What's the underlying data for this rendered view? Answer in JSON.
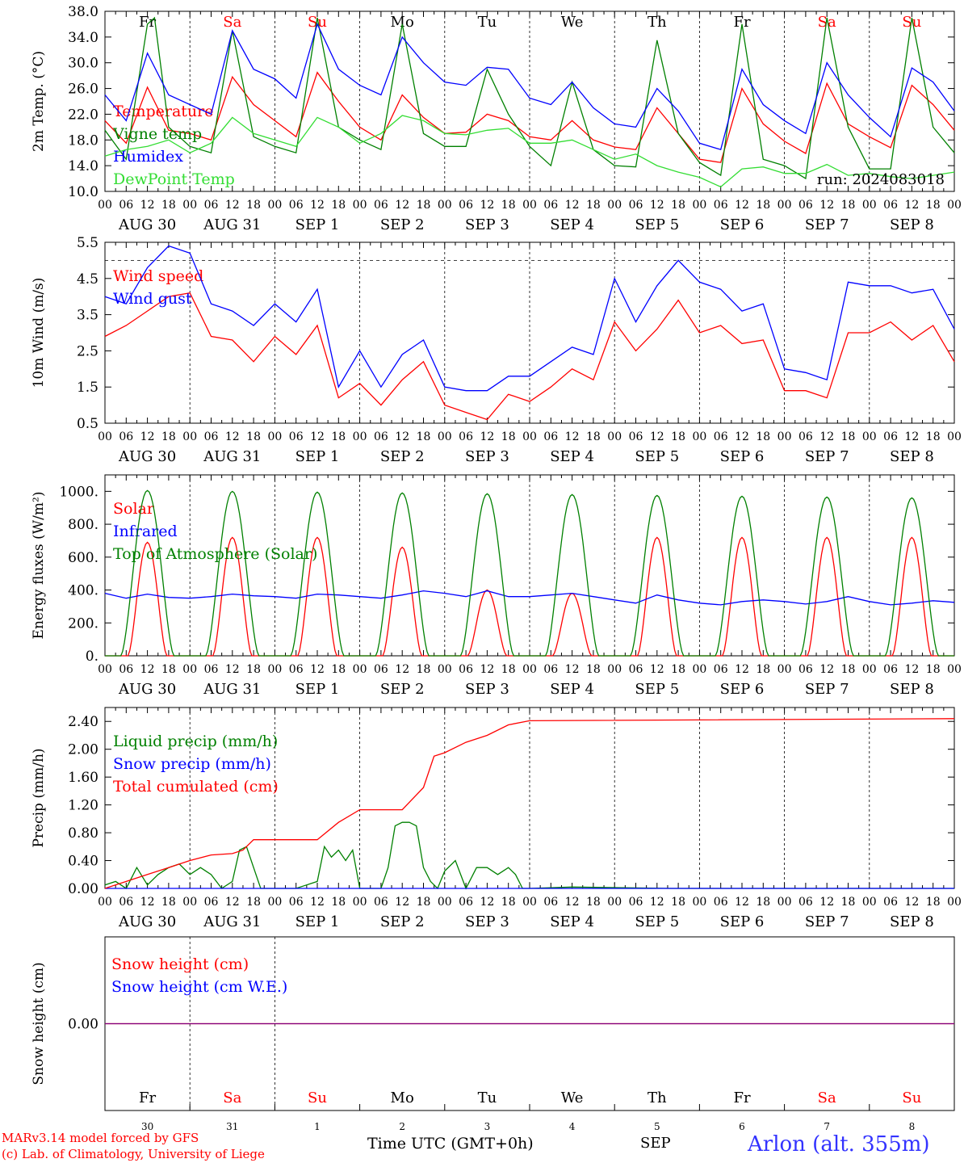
{
  "days": [
    {
      "weekday": "Fr",
      "date": "AUG 30",
      "dnum": "30",
      "weekend": false
    },
    {
      "weekday": "Sa",
      "date": "AUG 31",
      "dnum": "31",
      "weekend": true
    },
    {
      "weekday": "Su",
      "date": "SEP  1",
      "dnum": "1",
      "weekend": true
    },
    {
      "weekday": "Mo",
      "date": "SEP  2",
      "dnum": "2",
      "weekend": false
    },
    {
      "weekday": "Tu",
      "date": "SEP  3",
      "dnum": "3",
      "weekend": false
    },
    {
      "weekday": "We",
      "date": "SEP  4",
      "dnum": "4",
      "weekend": false
    },
    {
      "weekday": "Th",
      "date": "SEP  5",
      "dnum": "5",
      "weekend": false
    },
    {
      "weekday": "Fr",
      "date": "SEP  6",
      "dnum": "6",
      "weekend": false
    },
    {
      "weekday": "Sa",
      "date": "SEP  7",
      "dnum": "7",
      "weekend": true
    },
    {
      "weekday": "Su",
      "date": "SEP  8",
      "dnum": "8",
      "weekend": true
    }
  ],
  "hour_ticks": [
    "00",
    "06",
    "12",
    "18"
  ],
  "hour_end": "00",
  "colors": {
    "red": "#ff0000",
    "green": "#008000",
    "blue": "#0000ff",
    "lightgreen": "#33dd33",
    "purple": "#800080"
  },
  "chart_data": [
    {
      "type": "line",
      "ylabel": "2m Temp. (°C)",
      "ylim": [
        10,
        38
      ],
      "yticks": [
        "10.0",
        "14.0",
        "18.0",
        "22.0",
        "26.0",
        "30.0",
        "34.0",
        "38.0"
      ],
      "show_weekdays": true,
      "run_label": "run: 2024083018",
      "series": [
        {
          "name": "Temperature",
          "color": "red",
          "x": [
            0,
            6,
            12,
            18,
            24,
            30,
            36,
            42,
            48,
            54,
            60,
            66,
            72,
            78,
            84,
            90,
            96,
            102,
            108,
            114,
            120,
            126,
            132,
            138,
            144,
            150,
            156,
            162,
            168,
            174,
            180,
            186,
            192,
            198,
            204,
            210,
            216,
            222,
            228,
            234,
            240
          ],
          "y": [
            21,
            17.5,
            26.2,
            19.5,
            19,
            18,
            27.8,
            23.5,
            21,
            18.5,
            28.5,
            24,
            20,
            18,
            25,
            21.5,
            19,
            19.2,
            22,
            21,
            18.5,
            18,
            21,
            18,
            16.9,
            16.5,
            23,
            19,
            15,
            14.5,
            26,
            20.5,
            17.8,
            15.9,
            26.8,
            20.5,
            18.5,
            16.8,
            26.5,
            23.5,
            19.5
          ]
        },
        {
          "name": "Vigne temp",
          "color": "green",
          "x": [
            0,
            6,
            12,
            14,
            18,
            24,
            30,
            36,
            42,
            48,
            54,
            60,
            66,
            72,
            78,
            84,
            90,
            96,
            102,
            108,
            114,
            120,
            126,
            132,
            138,
            144,
            150,
            156,
            162,
            168,
            174,
            180,
            186,
            192,
            198,
            204,
            210,
            216,
            222,
            228,
            234,
            240
          ],
          "y": [
            19.5,
            15,
            36,
            37,
            20,
            17,
            16,
            35,
            18.5,
            17,
            16,
            37,
            20,
            18,
            16.5,
            36,
            19,
            17,
            17,
            29,
            22,
            17,
            14,
            27,
            16.5,
            14,
            13.8,
            33.5,
            19,
            14.5,
            12.5,
            36,
            15,
            14,
            12,
            37,
            20,
            13.5,
            13.5,
            37,
            20,
            16
          ]
        },
        {
          "name": "Humidex",
          "color": "blue",
          "x": [
            0,
            6,
            12,
            18,
            24,
            30,
            36,
            42,
            48,
            54,
            60,
            66,
            72,
            78,
            84,
            90,
            96,
            102,
            108,
            114,
            120,
            126,
            132,
            138,
            144,
            150,
            156,
            162,
            168,
            174,
            180,
            186,
            192,
            198,
            204,
            210,
            216,
            222,
            228,
            234,
            240
          ],
          "y": [
            25,
            21,
            31.5,
            25,
            23.5,
            22,
            35,
            29,
            27.5,
            24.5,
            36,
            29,
            26.5,
            25,
            34,
            30,
            27,
            26.5,
            29.3,
            29,
            24.5,
            23.5,
            27,
            23,
            20.5,
            20,
            26,
            22.5,
            17.5,
            16.5,
            29,
            23.5,
            21,
            19,
            30,
            25,
            21.5,
            18.5,
            29.2,
            27,
            22.5
          ]
        },
        {
          "name": "DewPoint Temp",
          "color": "lightgreen",
          "x": [
            0,
            6,
            12,
            18,
            24,
            30,
            36,
            42,
            48,
            54,
            60,
            66,
            72,
            78,
            84,
            90,
            96,
            102,
            108,
            114,
            120,
            126,
            132,
            138,
            144,
            150,
            156,
            162,
            168,
            174,
            180,
            186,
            192,
            198,
            204,
            210,
            216,
            222,
            228,
            234,
            240
          ],
          "y": [
            15.5,
            16.5,
            17,
            18,
            16,
            17.5,
            21.5,
            19,
            18,
            17,
            21.5,
            20,
            17.5,
            19,
            21.8,
            21,
            19,
            18.8,
            19.5,
            19.8,
            17.5,
            17.5,
            18,
            16.5,
            15,
            15.8,
            14,
            13,
            12.2,
            10.7,
            13.5,
            13.8,
            12.8,
            12.8,
            14.2,
            12.5,
            12.8,
            12.3,
            12,
            12.5,
            13
          ]
        }
      ]
    },
    {
      "type": "line",
      "ylabel": "10m Wind (m/s)",
      "ylim": [
        0.5,
        5.5
      ],
      "yticks": [
        "0.5",
        "1.5",
        "2.5",
        "3.5",
        "4.5",
        "5.5"
      ],
      "refline": 5.0,
      "series": [
        {
          "name": "Wind speed",
          "color": "red",
          "x": [
            0,
            6,
            12,
            18,
            24,
            30,
            36,
            42,
            48,
            54,
            60,
            66,
            72,
            78,
            84,
            90,
            96,
            102,
            108,
            114,
            120,
            126,
            132,
            138,
            144,
            150,
            156,
            162,
            168,
            174,
            180,
            186,
            192,
            198,
            204,
            210,
            216,
            222,
            228,
            234,
            240
          ],
          "y": [
            2.9,
            3.2,
            3.6,
            4.0,
            4.1,
            2.9,
            2.8,
            2.2,
            2.9,
            2.4,
            3.2,
            1.2,
            1.6,
            1.0,
            1.7,
            2.2,
            1.0,
            0.8,
            0.6,
            1.3,
            1.1,
            1.5,
            2.0,
            1.7,
            3.3,
            2.5,
            3.1,
            3.9,
            3.0,
            3.2,
            2.7,
            2.8,
            1.4,
            1.4,
            1.2,
            3.0,
            3.0,
            3.3,
            2.8,
            3.2,
            2.2
          ]
        },
        {
          "name": "Wind gust",
          "color": "blue",
          "x": [
            0,
            6,
            12,
            18,
            24,
            30,
            36,
            42,
            48,
            54,
            60,
            66,
            72,
            78,
            84,
            90,
            96,
            102,
            108,
            114,
            120,
            126,
            132,
            138,
            144,
            150,
            156,
            162,
            168,
            174,
            180,
            186,
            192,
            198,
            204,
            210,
            216,
            222,
            228,
            234,
            240
          ],
          "y": [
            4.0,
            3.8,
            4.8,
            5.4,
            5.2,
            3.8,
            3.6,
            3.2,
            3.8,
            3.3,
            4.2,
            1.5,
            2.5,
            1.5,
            2.4,
            2.8,
            1.5,
            1.4,
            1.4,
            1.8,
            1.8,
            2.2,
            2.6,
            2.4,
            4.5,
            3.3,
            4.3,
            5.0,
            4.4,
            4.2,
            3.6,
            3.8,
            2.0,
            1.9,
            1.7,
            4.4,
            4.3,
            4.3,
            4.1,
            4.2,
            3.1
          ]
        }
      ]
    },
    {
      "type": "line",
      "ylabel": "Energy fluxes (W/m²)",
      "ylim": [
        0,
        1100
      ],
      "yticks": [
        "0.",
        "200.",
        "400.",
        "600.",
        "800.",
        "1000."
      ],
      "series": [
        {
          "name": "Solar",
          "color": "red",
          "peaks": [
            690,
            720,
            720,
            660,
            400,
            380,
            720,
            720,
            720,
            720
          ]
        },
        {
          "name": "Infrared",
          "color": "blue",
          "x": [
            0,
            6,
            12,
            18,
            24,
            30,
            36,
            42,
            48,
            54,
            60,
            66,
            72,
            78,
            84,
            90,
            96,
            102,
            108,
            114,
            120,
            126,
            132,
            138,
            144,
            150,
            156,
            162,
            168,
            174,
            180,
            186,
            192,
            198,
            204,
            210,
            216,
            222,
            228,
            234,
            240
          ],
          "y": [
            380,
            350,
            375,
            355,
            350,
            360,
            375,
            365,
            360,
            350,
            375,
            370,
            360,
            350,
            370,
            395,
            380,
            360,
            395,
            360,
            360,
            370,
            380,
            360,
            340,
            320,
            370,
            340,
            320,
            310,
            330,
            340,
            330,
            315,
            330,
            360,
            330,
            310,
            320,
            335,
            325
          ]
        },
        {
          "name": "Top of Atmosphere (Solar)",
          "color": "green",
          "peaks": [
            1005,
            1000,
            995,
            990,
            985,
            980,
            975,
            970,
            965,
            960
          ]
        }
      ]
    },
    {
      "type": "line",
      "ylabel": "Precip (mm/h)",
      "ylim": [
        0,
        2.6
      ],
      "yticks": [
        "0.00",
        "0.40",
        "0.80",
        "1.20",
        "1.60",
        "2.00",
        "2.40"
      ],
      "series": [
        {
          "name": "Liquid precip (mm/h)",
          "color": "green",
          "x": [
            0,
            3,
            6,
            9,
            12,
            15,
            18,
            21,
            24,
            27,
            30,
            33,
            36,
            38,
            40,
            42,
            44,
            48,
            54,
            60,
            62,
            64,
            66,
            68,
            70,
            72,
            78,
            80,
            82,
            84,
            86,
            88,
            90,
            92,
            94,
            96,
            99,
            102,
            105,
            108,
            111,
            114,
            116,
            118,
            120,
            132,
            160,
            240
          ],
          "y": [
            0.05,
            0.1,
            0.0,
            0.3,
            0.05,
            0.2,
            0.3,
            0.35,
            0.2,
            0.3,
            0.2,
            0.0,
            0.1,
            0.55,
            0.6,
            0.3,
            0.0,
            0.0,
            0.0,
            0.1,
            0.6,
            0.45,
            0.55,
            0.4,
            0.55,
            0.0,
            0.0,
            0.3,
            0.9,
            0.95,
            0.95,
            0.9,
            0.3,
            0.1,
            0.0,
            0.25,
            0.4,
            0.0,
            0.3,
            0.3,
            0.2,
            0.3,
            0.2,
            0.0,
            0.0,
            0.02,
            0.0,
            0.0
          ]
        },
        {
          "name": "Snow precip (mm/h)",
          "color": "blue",
          "x": [
            0,
            240
          ],
          "y": [
            0,
            0
          ]
        },
        {
          "name": "Total cumulated (cm)",
          "color": "red",
          "x": [
            0,
            6,
            12,
            18,
            24,
            30,
            36,
            39,
            42,
            48,
            60,
            66,
            72,
            78,
            84,
            90,
            93,
            96,
            102,
            108,
            114,
            120,
            240
          ],
          "y": [
            0.0,
            0.1,
            0.2,
            0.3,
            0.4,
            0.48,
            0.5,
            0.55,
            0.7,
            0.7,
            0.7,
            0.95,
            1.13,
            1.13,
            1.13,
            1.45,
            1.9,
            1.95,
            2.1,
            2.2,
            2.35,
            2.41,
            2.44
          ]
        }
      ]
    },
    {
      "type": "line",
      "ylabel": "Snow height (cm)",
      "ylim": [
        -1,
        1
      ],
      "yticks": [
        "0.00"
      ],
      "bottom_labels": true,
      "series": [
        {
          "name": "Snow height (cm)",
          "color": "red",
          "x": [
            0,
            240
          ],
          "y": [
            0,
            0
          ]
        },
        {
          "name": "Snow height (cm W.E.)",
          "color": "blue",
          "x": [
            0,
            240
          ],
          "y": [
            0,
            0
          ]
        }
      ]
    }
  ],
  "footer": {
    "model": "MARv3.14 model forced by GFS",
    "copyright": "(c) Lab. of Climatology, University of Liege",
    "xlabel": "Time UTC (GMT+0h)",
    "month": "SEP",
    "station": "Arlon (alt. 355m)"
  }
}
